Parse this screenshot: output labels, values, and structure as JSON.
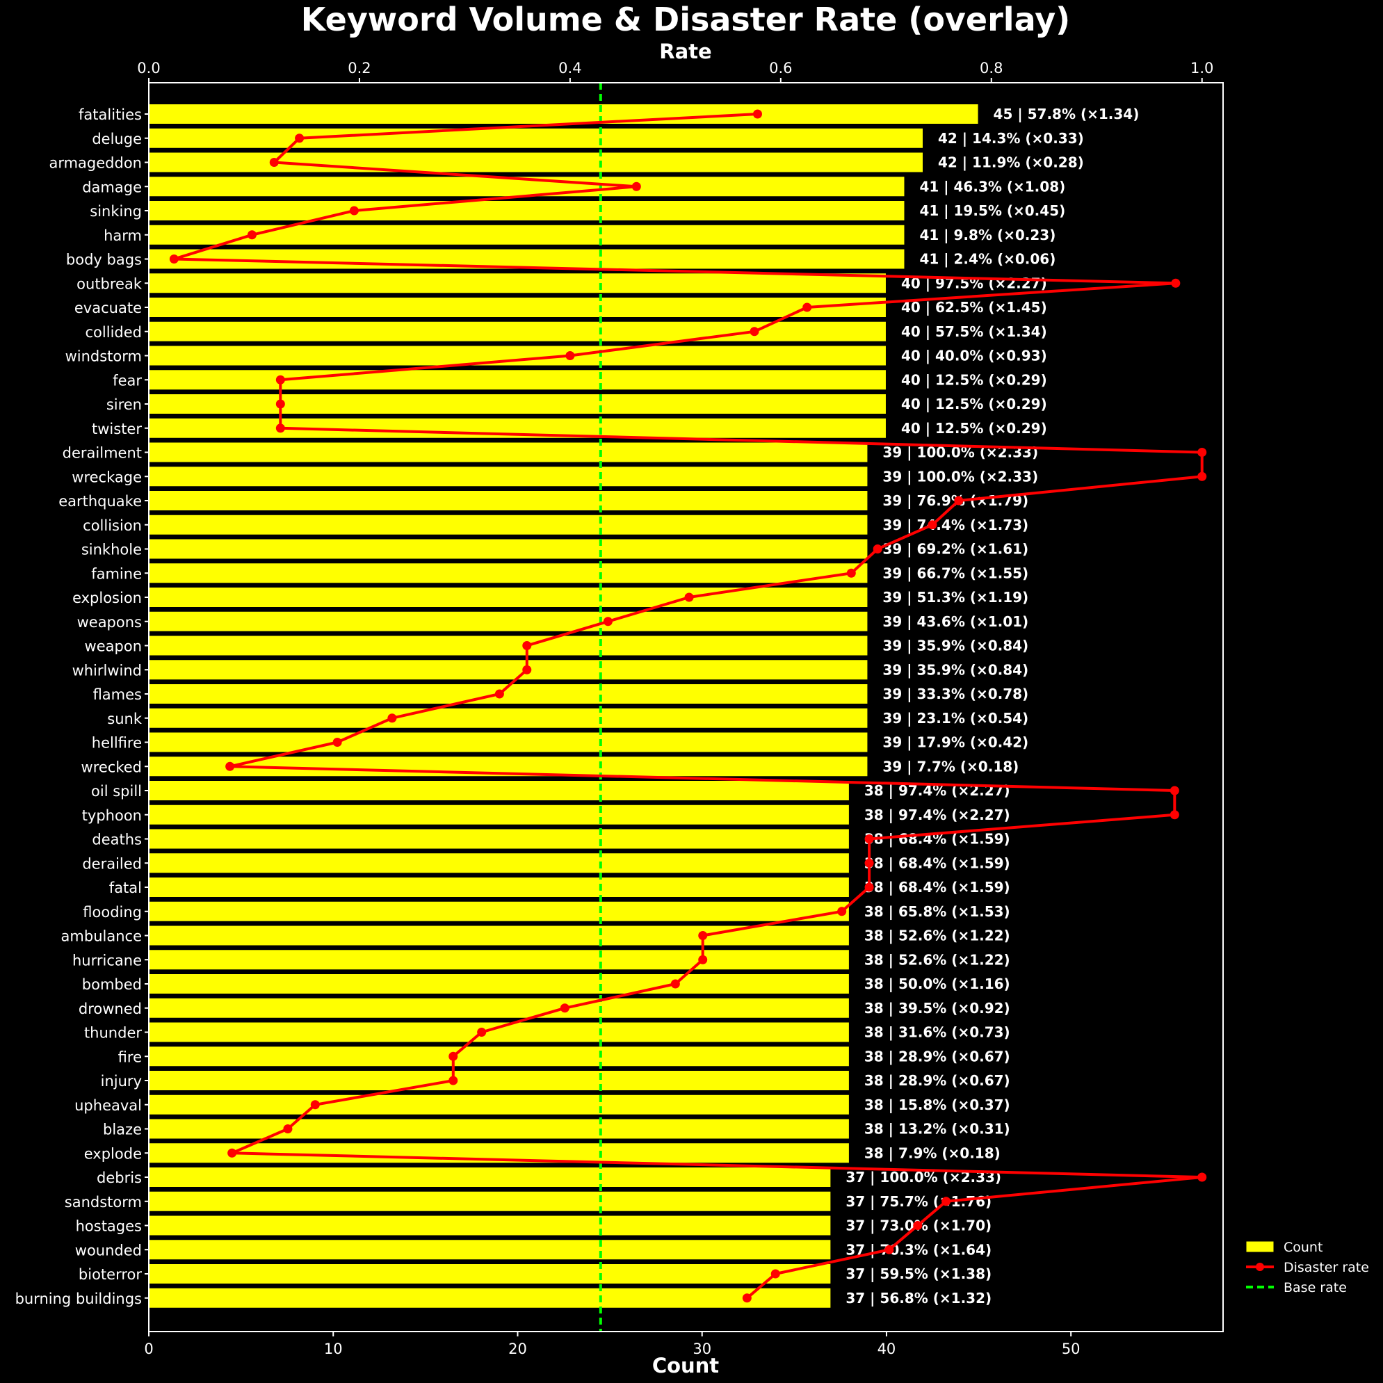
{
  "chart_data": {
    "type": "bar",
    "orientation": "horizontal",
    "title": "Keyword Volume & Disaster Rate (overlay)",
    "xlabel": "Count",
    "x2label": "Rate",
    "xlim": [
      0,
      58.25
    ],
    "x2lim": [
      0,
      1.02
    ],
    "x_ticks": [
      0,
      10,
      20,
      30,
      40,
      50
    ],
    "x2_ticks": [
      "0.0",
      "0.2",
      "0.4",
      "0.6",
      "0.8",
      "1.0"
    ],
    "base_rate": 0.429,
    "legend": {
      "placement": "outside-right",
      "entries": [
        "Count",
        "Disaster rate",
        "Base rate"
      ]
    },
    "colors": {
      "background": "#000000",
      "bar": "#ffff00",
      "bar_edge": "#000000",
      "rate_line": "#ff0000",
      "base_line": "#00ff00",
      "text": "#ffffff"
    },
    "categories": [
      "fatalities",
      "deluge",
      "armageddon",
      "damage",
      "sinking",
      "harm",
      "body bags",
      "outbreak",
      "evacuate",
      "collided",
      "windstorm",
      "fear",
      "siren",
      "twister",
      "derailment",
      "wreckage",
      "earthquake",
      "collision",
      "sinkhole",
      "famine",
      "explosion",
      "weapons",
      "weapon",
      "whirlwind",
      "flames",
      "sunk",
      "hellfire",
      "wrecked",
      "oil spill",
      "typhoon",
      "deaths",
      "derailed",
      "fatal",
      "flooding",
      "ambulance",
      "hurricane",
      "bombed",
      "drowned",
      "thunder",
      "fire",
      "injury",
      "upheaval",
      "blaze",
      "explode",
      "debris",
      "sandstorm",
      "hostages",
      "wounded",
      "bioterror",
      "burning buildings"
    ],
    "series": [
      {
        "name": "Count",
        "values": [
          45,
          42,
          42,
          41,
          41,
          41,
          41,
          40,
          40,
          40,
          40,
          40,
          40,
          40,
          39,
          39,
          39,
          39,
          39,
          39,
          39,
          39,
          39,
          39,
          39,
          39,
          39,
          39,
          38,
          38,
          38,
          38,
          38,
          38,
          38,
          38,
          38,
          38,
          38,
          38,
          38,
          38,
          38,
          38,
          37,
          37,
          37,
          37,
          37,
          37
        ]
      },
      {
        "name": "Disaster rate",
        "values": [
          0.578,
          0.143,
          0.119,
          0.463,
          0.195,
          0.098,
          0.024,
          0.975,
          0.625,
          0.575,
          0.4,
          0.125,
          0.125,
          0.125,
          1.0,
          1.0,
          0.769,
          0.744,
          0.692,
          0.667,
          0.513,
          0.436,
          0.359,
          0.359,
          0.333,
          0.231,
          0.179,
          0.077,
          0.974,
          0.974,
          0.684,
          0.684,
          0.684,
          0.658,
          0.526,
          0.526,
          0.5,
          0.395,
          0.316,
          0.289,
          0.289,
          0.158,
          0.132,
          0.079,
          1.0,
          0.757,
          0.73,
          0.703,
          0.595,
          0.568
        ]
      }
    ],
    "bar_labels": [
      "45 | 57.8% (×1.34)",
      "42 | 14.3% (×0.33)",
      "42 | 11.9% (×0.28)",
      "41 | 46.3% (×1.08)",
      "41 | 19.5% (×0.45)",
      "41 | 9.8% (×0.23)",
      "41 | 2.4% (×0.06)",
      "40 | 97.5% (×2.27)",
      "40 | 62.5% (×1.45)",
      "40 | 57.5% (×1.34)",
      "40 | 40.0% (×0.93)",
      "40 | 12.5% (×0.29)",
      "40 | 12.5% (×0.29)",
      "40 | 12.5% (×0.29)",
      "39 | 100.0% (×2.33)",
      "39 | 100.0% (×2.33)",
      "39 | 76.9% (×1.79)",
      "39 | 74.4% (×1.73)",
      "39 | 69.2% (×1.61)",
      "39 | 66.7% (×1.55)",
      "39 | 51.3% (×1.19)",
      "39 | 43.6% (×1.01)",
      "39 | 35.9% (×0.84)",
      "39 | 35.9% (×0.84)",
      "39 | 33.3% (×0.78)",
      "39 | 23.1% (×0.54)",
      "39 | 17.9% (×0.42)",
      "39 | 7.7% (×0.18)",
      "38 | 97.4% (×2.27)",
      "38 | 97.4% (×2.27)",
      "38 | 68.4% (×1.59)",
      "38 | 68.4% (×1.59)",
      "38 | 68.4% (×1.59)",
      "38 | 65.8% (×1.53)",
      "38 | 52.6% (×1.22)",
      "38 | 52.6% (×1.22)",
      "38 | 50.0% (×1.16)",
      "38 | 39.5% (×0.92)",
      "38 | 31.6% (×0.73)",
      "38 | 28.9% (×0.67)",
      "38 | 28.9% (×0.67)",
      "38 | 15.8% (×0.37)",
      "38 | 13.2% (×0.31)",
      "38 | 7.9% (×0.18)",
      "37 | 100.0% (×2.33)",
      "37 | 75.7% (×1.76)",
      "37 | 73.0% (×1.70)",
      "37 | 70.3% (×1.64)",
      "37 | 59.5% (×1.38)",
      "37 | 56.8% (×1.32)"
    ]
  }
}
